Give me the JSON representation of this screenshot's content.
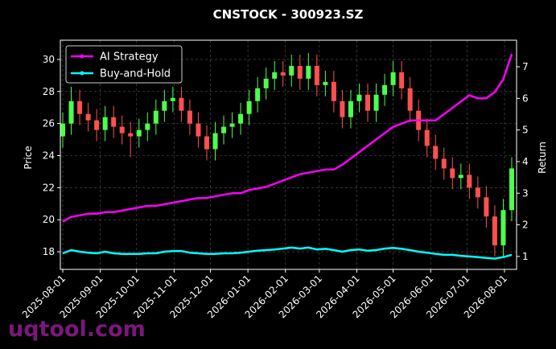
{
  "chart_data": {
    "type": "candlestick",
    "title": "CNSTOCK - 300923.SZ",
    "ylabel": "Price",
    "y2label": "Return",
    "watermark": "uqtool.com",
    "x": [
      "2025-08-01",
      "2025-08-08",
      "2025-08-15",
      "2025-08-22",
      "2025-08-29",
      "2025-09-05",
      "2025-09-12",
      "2025-09-19",
      "2025-09-26",
      "2025-10-03",
      "2025-10-10",
      "2025-10-17",
      "2025-10-24",
      "2025-10-31",
      "2025-11-07",
      "2025-11-14",
      "2025-11-21",
      "2025-11-28",
      "2025-12-05",
      "2025-12-12",
      "2025-12-19",
      "2025-12-26",
      "2026-01-02",
      "2026-01-09",
      "2026-01-16",
      "2026-01-23",
      "2026-01-30",
      "2026-02-06",
      "2026-02-13",
      "2026-02-20",
      "2026-02-27",
      "2026-03-06",
      "2026-03-13",
      "2026-03-20",
      "2026-03-27",
      "2026-04-03",
      "2026-04-10",
      "2026-04-17",
      "2026-04-24",
      "2026-05-01",
      "2026-05-08",
      "2026-05-15",
      "2026-05-22",
      "2026-05-29",
      "2026-06-05",
      "2026-06-12",
      "2026-06-19",
      "2026-06-26",
      "2026-07-03",
      "2026-07-10",
      "2026-07-17",
      "2026-07-24",
      "2026-07-31",
      "2026-08-07"
    ],
    "open": [
      25.2,
      26.0,
      27.4,
      26.6,
      26.2,
      25.6,
      26.4,
      25.8,
      25.4,
      25.2,
      25.6,
      26.0,
      26.8,
      27.4,
      27.6,
      26.8,
      26.0,
      25.2,
      24.4,
      25.4,
      25.8,
      26.0,
      26.6,
      27.4,
      28.2,
      28.8,
      29.2,
      29.0,
      29.6,
      28.8,
      29.6,
      28.4,
      28.6,
      27.4,
      26.4,
      27.4,
      27.8,
      26.8,
      27.8,
      28.4,
      29.2,
      28.2,
      26.8,
      25.6,
      24.6,
      23.8,
      23.2,
      22.6,
      22.8,
      22.0,
      21.4,
      20.2,
      18.4,
      20.6
    ],
    "high": [
      26.7,
      28.3,
      28.1,
      27.3,
      26.9,
      27.1,
      27.1,
      26.5,
      26.1,
      26.3,
      26.7,
      27.5,
      28.1,
      28.3,
      28.3,
      27.5,
      26.7,
      25.9,
      26.1,
      26.5,
      26.7,
      27.3,
      28.1,
      28.9,
      29.5,
      29.9,
      29.9,
      30.3,
      30.3,
      30.4,
      30.3,
      29.3,
      29.3,
      28.1,
      28.1,
      28.5,
      28.5,
      28.5,
      29.1,
      29.9,
      29.9,
      28.9,
      27.5,
      26.3,
      25.3,
      24.5,
      23.9,
      23.5,
      23.5,
      22.7,
      22.1,
      20.9,
      21.3,
      23.9
    ],
    "low": [
      24.5,
      25.3,
      25.9,
      25.5,
      24.9,
      24.9,
      25.1,
      24.7,
      23.9,
      24.5,
      24.9,
      25.3,
      26.1,
      26.7,
      26.1,
      25.3,
      24.5,
      23.7,
      23.7,
      24.7,
      25.1,
      25.3,
      25.9,
      26.7,
      27.5,
      28.1,
      28.3,
      28.3,
      28.1,
      28.1,
      27.7,
      27.7,
      26.7,
      25.7,
      25.7,
      26.7,
      26.1,
      26.1,
      27.1,
      27.7,
      27.5,
      26.1,
      24.9,
      23.9,
      23.1,
      22.5,
      21.9,
      21.9,
      21.3,
      20.7,
      19.5,
      17.7,
      17.7,
      19.9
    ],
    "close": [
      26.0,
      27.4,
      26.6,
      26.2,
      25.6,
      26.4,
      25.8,
      25.4,
      25.2,
      25.6,
      26.0,
      26.8,
      27.4,
      27.6,
      26.8,
      26.0,
      25.2,
      24.4,
      25.4,
      25.8,
      26.0,
      26.6,
      27.4,
      28.2,
      28.8,
      29.2,
      29.0,
      29.6,
      28.8,
      29.6,
      28.4,
      28.6,
      27.4,
      26.4,
      27.4,
      27.8,
      26.8,
      27.8,
      28.4,
      29.2,
      28.2,
      26.8,
      25.6,
      24.6,
      23.8,
      23.2,
      22.6,
      22.8,
      22.0,
      21.4,
      20.2,
      18.4,
      20.6,
      23.2
    ],
    "up_color": "#4dff4d",
    "down_color": "#ff5050",
    "series": [
      {
        "name": "AI Strategy",
        "color": "#ff00ff",
        "axis": "y2",
        "values": [
          2.1,
          2.25,
          2.3,
          2.35,
          2.35,
          2.4,
          2.4,
          2.45,
          2.5,
          2.55,
          2.6,
          2.6,
          2.65,
          2.7,
          2.75,
          2.8,
          2.85,
          2.85,
          2.9,
          2.95,
          3.0,
          3.0,
          3.1,
          3.15,
          3.2,
          3.3,
          3.4,
          3.5,
          3.6,
          3.65,
          3.7,
          3.75,
          3.75,
          3.9,
          4.1,
          4.3,
          4.5,
          4.7,
          4.9,
          5.1,
          5.2,
          5.3,
          5.3,
          5.3,
          5.3,
          5.5,
          5.7,
          5.9,
          6.1,
          6.0,
          6.0,
          6.2,
          6.6,
          7.4
        ]
      },
      {
        "name": "Buy-and-Hold",
        "color": "#00ffff",
        "axis": "y2",
        "values": [
          1.1,
          1.2,
          1.15,
          1.12,
          1.1,
          1.15,
          1.1,
          1.08,
          1.08,
          1.08,
          1.1,
          1.1,
          1.15,
          1.17,
          1.17,
          1.12,
          1.1,
          1.08,
          1.08,
          1.1,
          1.1,
          1.12,
          1.15,
          1.18,
          1.2,
          1.22,
          1.25,
          1.28,
          1.25,
          1.28,
          1.22,
          1.24,
          1.2,
          1.15,
          1.2,
          1.22,
          1.18,
          1.2,
          1.25,
          1.27,
          1.24,
          1.2,
          1.15,
          1.12,
          1.08,
          1.05,
          1.05,
          1.02,
          1.0,
          0.98,
          0.95,
          0.93,
          0.98,
          1.05
        ]
      }
    ],
    "xlim": [
      "2025-07-30",
      "2026-08-11"
    ],
    "xticks": [
      "2025-08-01",
      "2025-09-01",
      "2025-10-01",
      "2025-11-01",
      "2025-12-01",
      "2026-01-01",
      "2026-02-01",
      "2026-03-01",
      "2026-04-01",
      "2026-05-01",
      "2026-06-01",
      "2026-07-01",
      "2026-08-01"
    ],
    "ylim": [
      16.9,
      31.2
    ],
    "yticks": [
      18,
      20,
      22,
      24,
      26,
      28,
      30
    ],
    "y2lim": [
      0.59,
      7.84
    ],
    "y2ticks": [
      1,
      2,
      3,
      4,
      5,
      6,
      7
    ],
    "grid": true,
    "legend": "upper left"
  }
}
